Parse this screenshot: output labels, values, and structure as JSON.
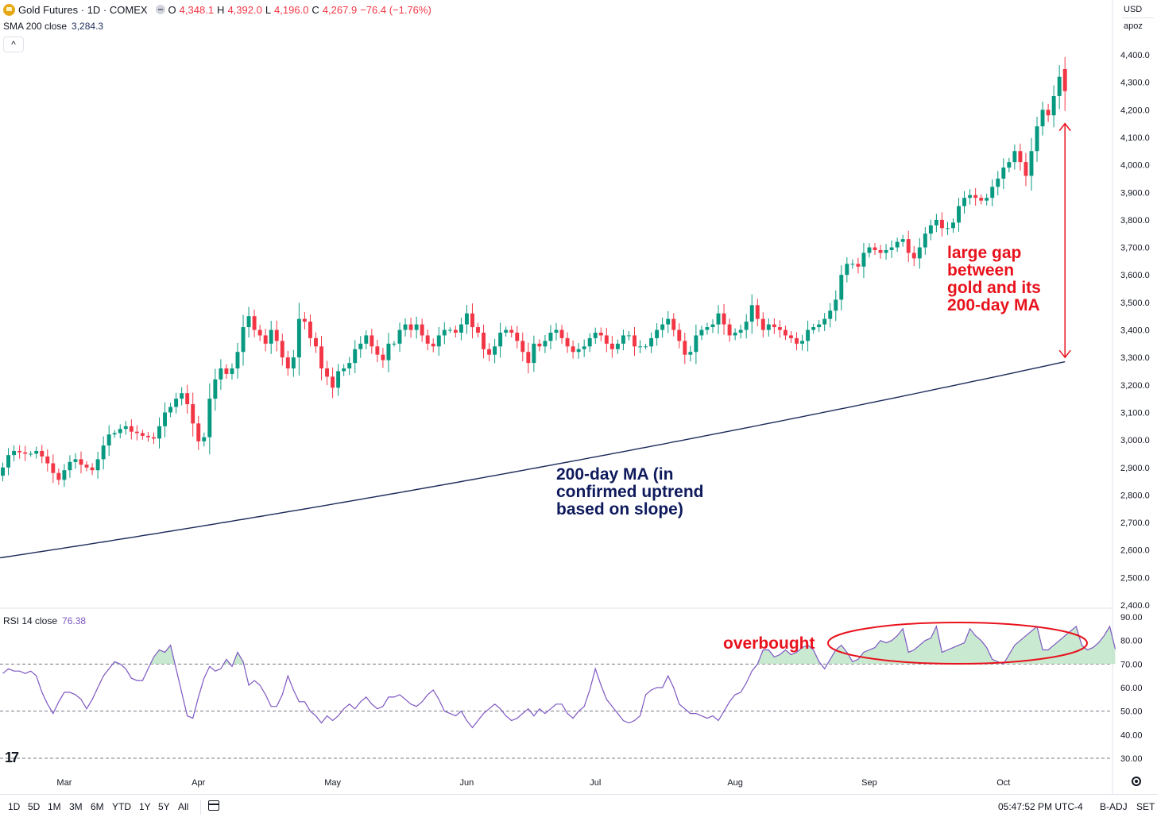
{
  "header": {
    "symbol": "Gold Futures · 1D · COMEX",
    "ohlc": [
      {
        "label": "O",
        "value": "4,348.1"
      },
      {
        "label": "H",
        "value": "4,392.0"
      },
      {
        "label": "L",
        "value": "4,196.0"
      },
      {
        "label": "C",
        "value": "4,267.9"
      }
    ],
    "change": "−76.4 (−1.76%)",
    "sma_label": "SMA 200 close",
    "sma_value": "3,284.3",
    "collapse_label": "^",
    "currency": "USD",
    "unit": "apoz"
  },
  "rsi_header": {
    "label": "RSI 14 close",
    "value": "76.38"
  },
  "annotations": {
    "ma": "200-day MA (in\nconfirmed uptrend\nbased on slope)",
    "gap": "large gap\nbetween\ngold and its\n200-day MA",
    "overbought": "overbought"
  },
  "bottom_bar": {
    "ranges": [
      "1D",
      "5D",
      "1M",
      "3M",
      "6M",
      "YTD",
      "1Y",
      "5Y",
      "All"
    ],
    "time": "05:47:52 PM UTC-4",
    "badj": "B-ADJ",
    "set": "SET"
  },
  "colors": {
    "up": "#089981",
    "down": "#f23645",
    "sma": "#1c2a5a",
    "rsi": "#7e57c2",
    "annotation_red": "#e8121d",
    "annotation_navy": "#0e1a5c"
  },
  "icons": {
    "logo": "gold-coin-icon",
    "eye": "visibility-eye-icon",
    "calendar": "calendar-icon",
    "settings": "settings-gear-icon",
    "brand": "tradingview-logo-icon"
  },
  "chart_data": [
    {
      "type": "candlestick",
      "series_name": "Gold Futures",
      "y_ticks": [
        2400,
        2500,
        2600,
        2700,
        2800,
        2900,
        3000,
        3100,
        3200,
        3300,
        3400,
        3500,
        3600,
        3700,
        3800,
        3900,
        4000,
        4100,
        4200,
        4300,
        4400
      ],
      "y_tick_labels": [
        "2,400.0",
        "2,500.0",
        "2,600.0",
        "2,700.0",
        "2,800.0",
        "2,900.0",
        "3,000.0",
        "3,100.0",
        "3,200.0",
        "3,300.0",
        "3,400.0",
        "3,500.0",
        "3,600.0",
        "3,700.0",
        "3,800.0",
        "3,900.0",
        "4,000.0",
        "4,100.0",
        "4,200.0",
        "4,300.0",
        "4,400.0"
      ],
      "ylim": [
        2400,
        4400
      ],
      "x_tick_labels": [
        "Mar",
        "Apr",
        "May",
        "Jun",
        "Jul",
        "Aug",
        "Sep",
        "Oct"
      ],
      "x_tick_index": [
        11,
        35,
        59,
        83,
        106,
        131,
        155,
        179
      ],
      "x_range": [
        -0.5,
        198.5
      ],
      "close": [
        2900,
        2945,
        2960,
        2955,
        2950,
        2950,
        2960,
        2940,
        2915,
        2880,
        2855,
        2890,
        2920,
        2930,
        2910,
        2900,
        2890,
        2930,
        2980,
        3020,
        3025,
        3040,
        3050,
        3030,
        3025,
        3015,
        3010,
        3005,
        3050,
        3100,
        3120,
        3150,
        3170,
        3130,
        3060,
        2995,
        3010,
        3150,
        3220,
        3260,
        3240,
        3260,
        3320,
        3410,
        3450,
        3400,
        3380,
        3350,
        3400,
        3360,
        3300,
        3260,
        3300,
        3440,
        3430,
        3370,
        3340,
        3260,
        3230,
        3190,
        3250,
        3260,
        3280,
        3330,
        3350,
        3380,
        3340,
        3310,
        3290,
        3350,
        3350,
        3400,
        3420,
        3400,
        3420,
        3380,
        3350,
        3340,
        3380,
        3400,
        3400,
        3390,
        3420,
        3460,
        3410,
        3390,
        3330,
        3310,
        3340,
        3390,
        3400,
        3390,
        3360,
        3320,
        3280,
        3350,
        3340,
        3360,
        3390,
        3400,
        3370,
        3340,
        3320,
        3330,
        3340,
        3370,
        3390,
        3380,
        3350,
        3330,
        3350,
        3380,
        3380,
        3340,
        3340,
        3340,
        3370,
        3400,
        3420,
        3440,
        3400,
        3360,
        3310,
        3320,
        3380,
        3400,
        3410,
        3420,
        3460,
        3420,
        3380,
        3390,
        3400,
        3430,
        3490,
        3440,
        3400,
        3420,
        3410,
        3400,
        3380,
        3370,
        3350,
        3360,
        3400,
        3410,
        3420,
        3440,
        3470,
        3510,
        3600,
        3640,
        3640,
        3630,
        3680,
        3700,
        3690,
        3680,
        3690,
        3700,
        3720,
        3730,
        3680,
        3660,
        3700,
        3750,
        3780,
        3800,
        3770,
        3770,
        3790,
        3850,
        3880,
        3890,
        3880,
        3870,
        3880,
        3920,
        3950,
        3990,
        4010,
        4050,
        4010,
        3960,
        4050,
        4140,
        4200,
        4180,
        4250,
        4320,
        4268
      ],
      "sma200": {
        "start": 2570,
        "end": 3284.3,
        "shape": "rising, slightly concave up"
      }
    },
    {
      "type": "line",
      "series_name": "RSI 14 close",
      "ylim": [
        30,
        90
      ],
      "y_ticks": [
        30,
        40,
        50,
        60,
        70,
        80,
        90
      ],
      "y_tick_labels": [
        "30.00",
        "40.00",
        "50.00",
        "60.00",
        "70.00",
        "80.00",
        "90.00"
      ],
      "bands": [
        30,
        50,
        70
      ],
      "values": [
        66,
        68,
        67,
        67,
        66,
        67,
        65,
        58,
        53,
        49,
        54,
        58,
        58,
        57,
        55,
        51,
        55,
        60,
        65,
        68,
        71,
        70,
        68,
        64,
        63,
        63,
        68,
        73,
        76,
        75,
        78,
        68,
        58,
        48,
        47,
        56,
        64,
        69,
        67,
        68,
        72,
        69,
        75,
        71,
        61,
        63,
        61,
        57,
        52,
        52,
        57,
        65,
        59,
        54,
        54,
        50,
        48,
        45,
        48,
        46,
        48,
        51,
        53,
        51,
        54,
        56,
        53,
        51,
        52,
        56,
        56,
        57,
        55,
        53,
        52,
        54,
        57,
        59,
        55,
        50,
        49,
        48,
        50,
        46,
        43,
        46,
        49,
        51,
        53,
        51,
        48,
        46,
        47,
        49,
        51,
        48,
        51,
        49,
        51,
        53,
        53,
        49,
        47,
        50,
        52,
        59,
        68,
        61,
        55,
        52,
        49,
        46,
        45,
        46,
        48,
        57,
        59,
        60,
        60,
        65,
        60,
        53,
        51,
        49,
        49,
        48,
        47,
        48,
        46,
        50,
        54,
        57,
        58,
        62,
        67,
        70,
        76,
        76,
        73,
        74,
        76,
        74,
        75,
        77,
        78,
        76,
        71,
        68,
        72,
        76,
        78,
        75,
        71,
        72,
        75,
        76,
        77,
        80,
        79,
        80,
        82,
        85,
        75,
        76,
        78,
        80,
        81,
        86,
        75,
        76,
        77,
        78,
        79,
        85,
        82,
        80,
        77,
        72,
        71,
        70,
        74,
        78,
        80,
        82,
        84,
        86,
        76,
        76,
        78,
        80,
        82,
        84,
        86,
        78,
        76,
        77,
        79,
        82,
        86,
        76.38
      ],
      "fill_above": 70
    }
  ]
}
